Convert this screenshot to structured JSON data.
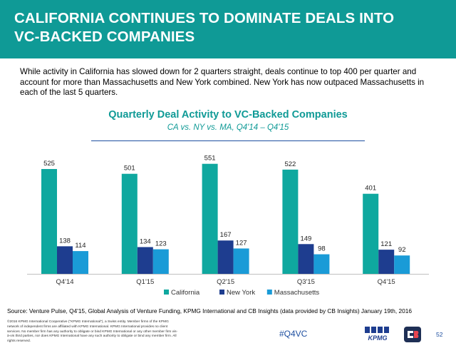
{
  "header": {
    "title_line1": "CALIFORNIA CONTINUES TO DOMINATE DEALS INTO",
    "title_line2": "VC-BACKED COMPANIES"
  },
  "intro_text": "While activity in California has slowed down for 2 quarters straight, deals continue to top 400 per quarter and account for more than Massachusetts and New York combined. New York has now outpaced Massachusetts in each of the last 5 quarters.",
  "chart_data": {
    "type": "bar",
    "title": "Quarterly Deal Activity to VC-Backed Companies",
    "subtitle": "CA vs. NY vs. MA, Q4'14 – Q4'15",
    "categories": [
      "Q4'14",
      "Q1'15",
      "Q2'15",
      "Q3'15",
      "Q4'15"
    ],
    "series": [
      {
        "name": "California",
        "values": [
          525,
          501,
          551,
          522,
          401
        ],
        "color": "#0fa89f"
      },
      {
        "name": "New York",
        "values": [
          138,
          134,
          167,
          149,
          121
        ],
        "color": "#1e3d8f"
      },
      {
        "name": "Massachusetts",
        "values": [
          114,
          123,
          127,
          98,
          92
        ],
        "color": "#1a9bd7"
      }
    ],
    "ylim": [
      0,
      600
    ],
    "grid": false,
    "legend": "bottom"
  },
  "footer": {
    "source": "Source: Venture Pulse, Q4'15, Global Analysis of Venture Funding, KPMG International and CB Insights (data provided by CB Insights) January 19th, 2016",
    "legal": "©2016 KPMG International Cooperative (\"KPMG International\"), a Swiss entity. Member firms of the KPMG network of independent firms are affiliated with KPMG International. KPMG International provides no client services. No member firm has any authority to obligate or bind KPMG International or any other member firm vis-à-vis third parties, nor does KPMG International have any such authority to obligate or bind any member firm. All rights reserved.",
    "hashtag": "#Q4VC",
    "page_number": "52",
    "kpmg_logo_text": "KPMG"
  },
  "colors": {
    "brand_teal": "#0f9a96",
    "brand_blue": "#1e4fa0"
  }
}
